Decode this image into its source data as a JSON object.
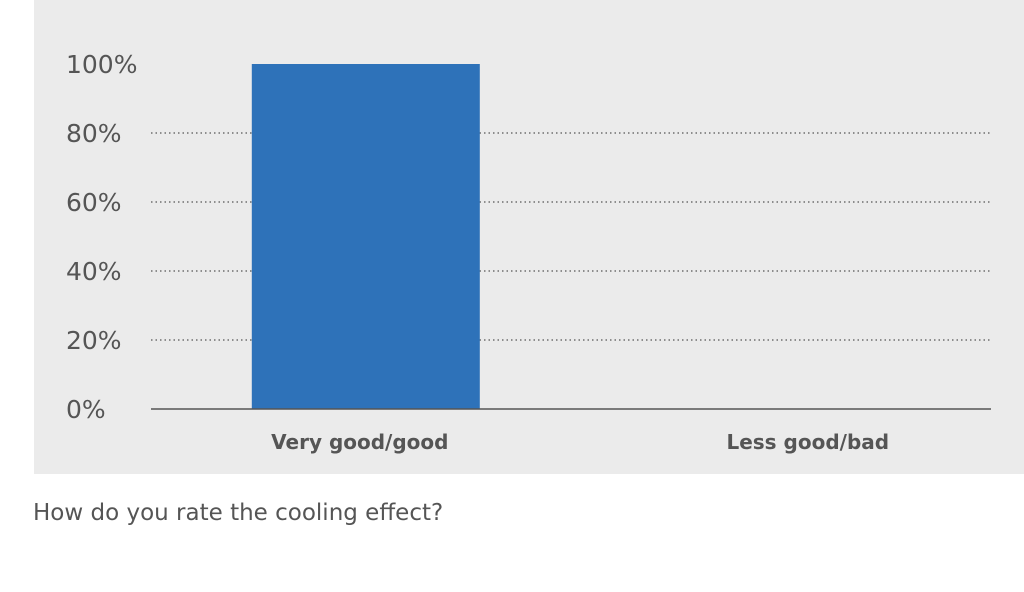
{
  "caption": "How do you rate the cooling effect?",
  "colors": {
    "background_panel": "#ebebeb",
    "bar": "#2e72b9",
    "grid": "#555555",
    "text": "#555555"
  },
  "chart_data": {
    "type": "bar",
    "title": "",
    "xlabel": "",
    "ylabel": "",
    "categories": [
      "Very good/good",
      "Less good/bad"
    ],
    "values": [
      100,
      0
    ],
    "ylim": [
      0,
      100
    ],
    "yticks": [
      "0%",
      "20%",
      "40%",
      "60%",
      "80%",
      "100%"
    ],
    "ytick_values": [
      0,
      20,
      40,
      60,
      80,
      100
    ],
    "grid": true,
    "grid_style": "dotted"
  }
}
